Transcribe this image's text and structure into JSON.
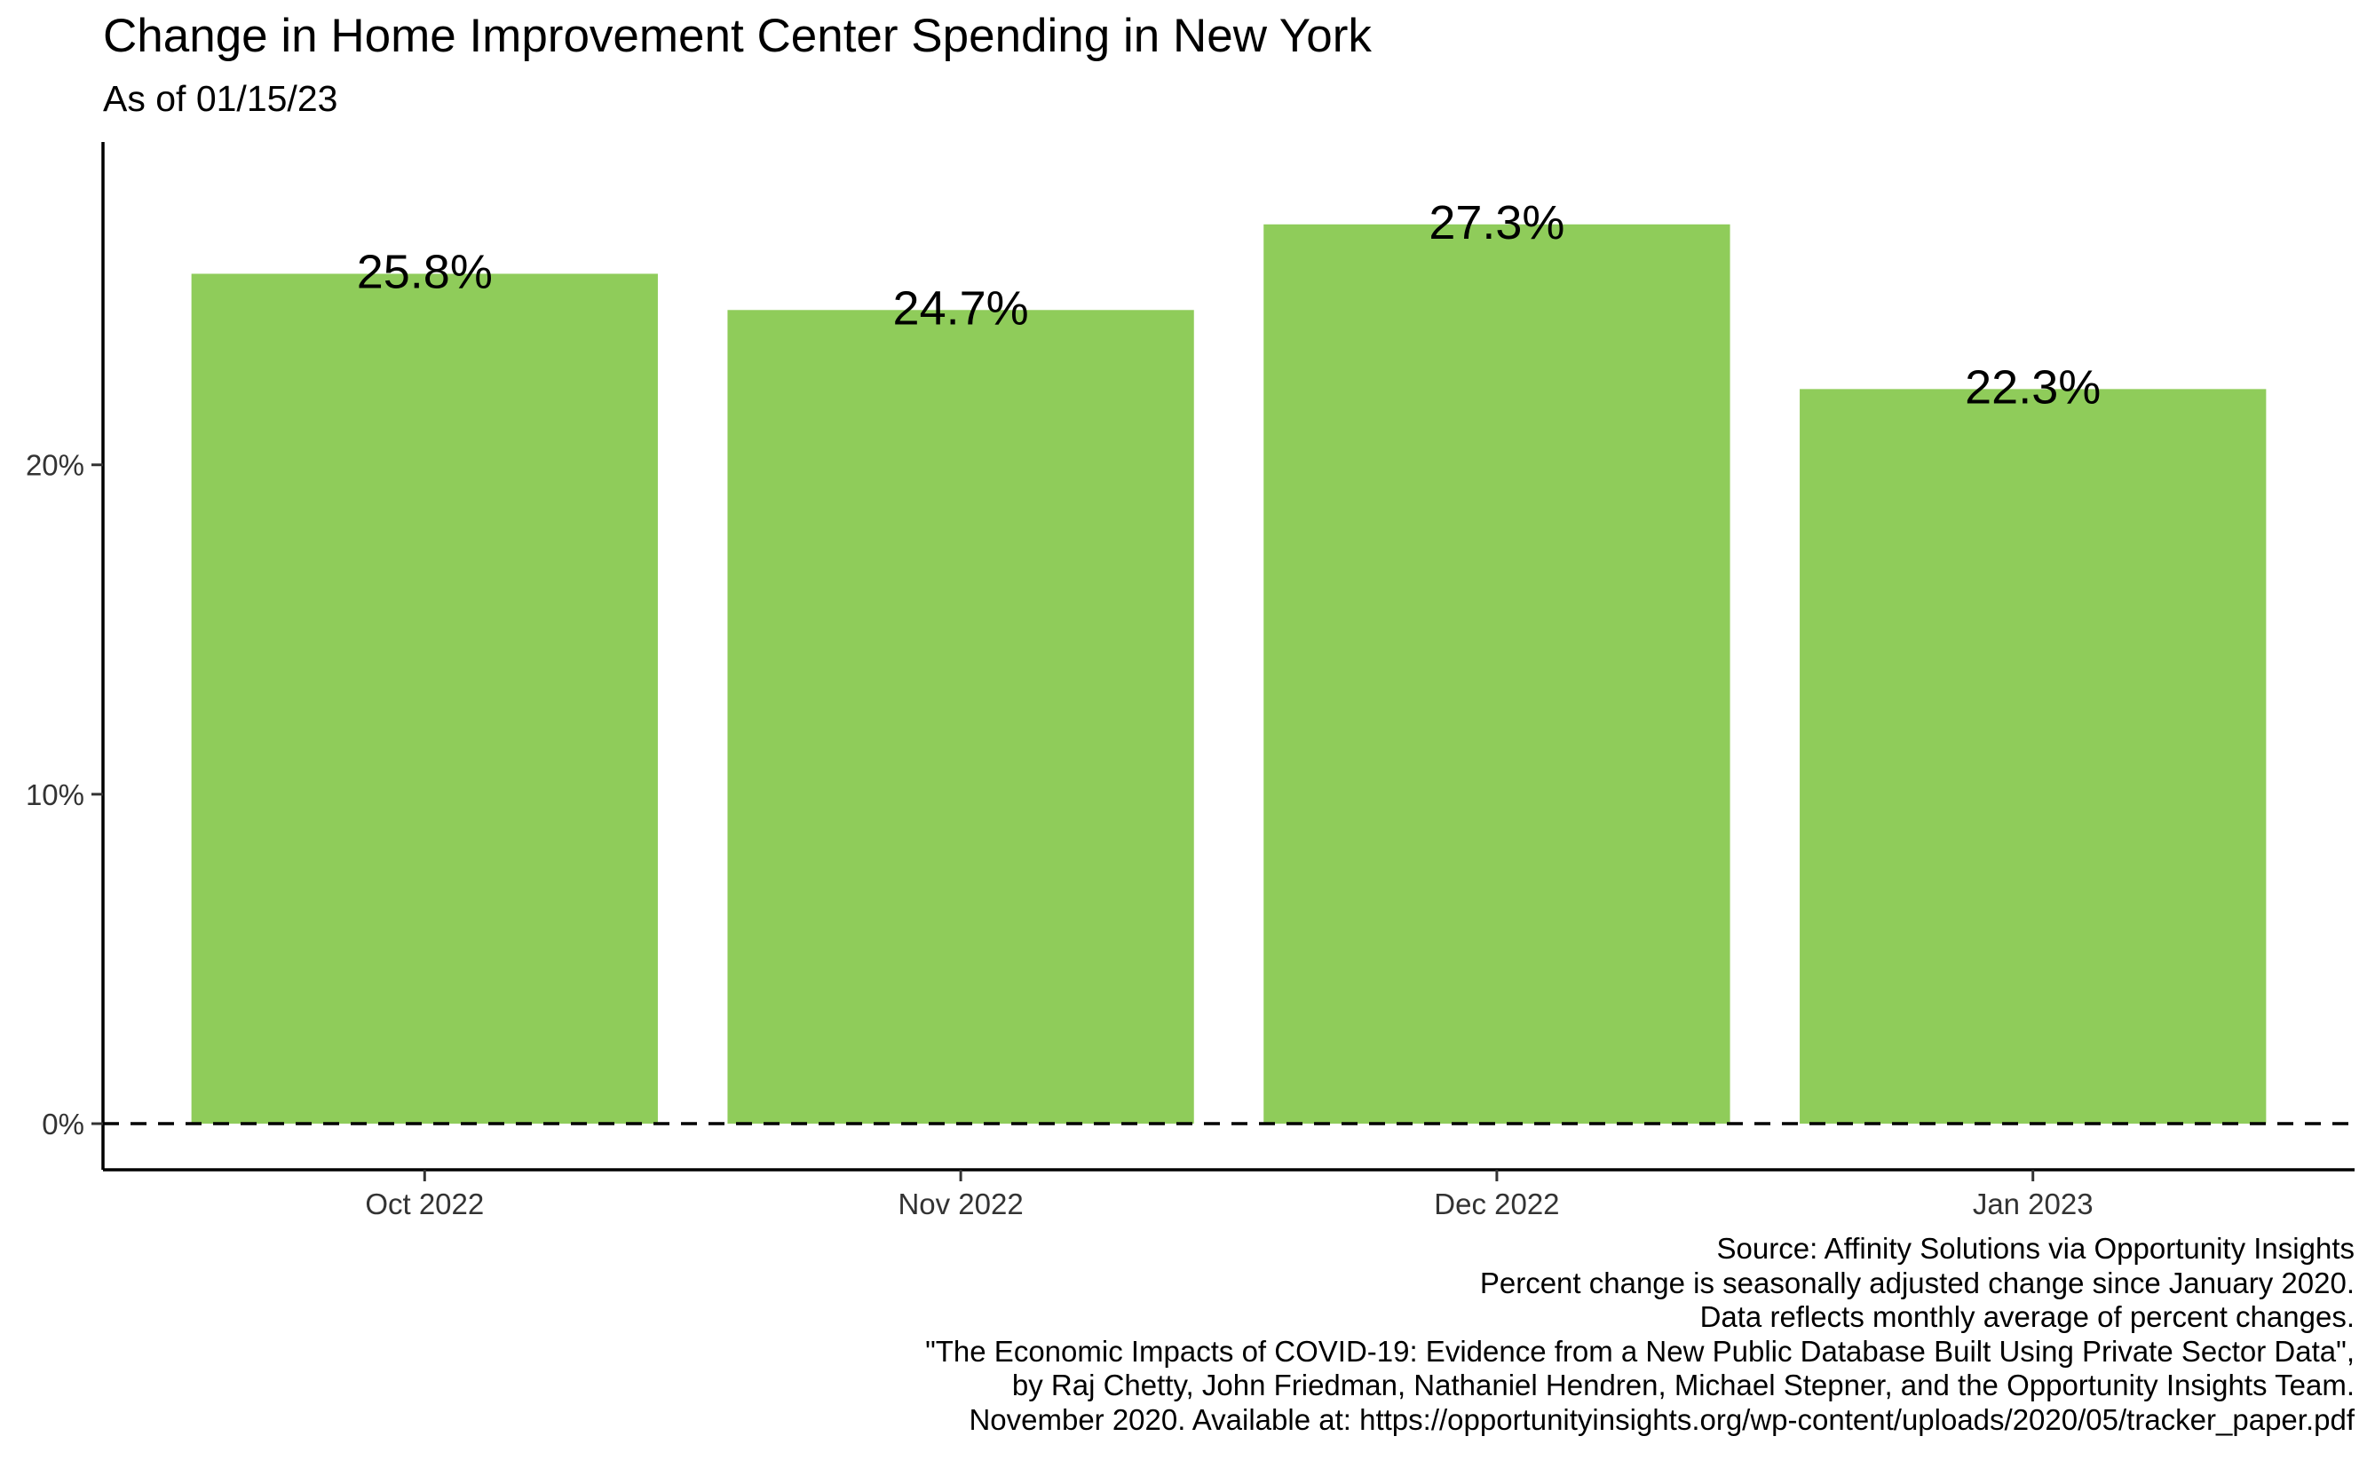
{
  "chart_data": {
    "type": "bar",
    "title": "Change in Home Improvement Center Spending in New York",
    "subtitle": "As of 01/15/23",
    "categories": [
      "Oct 2022",
      "Nov 2022",
      "Dec 2022",
      "Jan 2023"
    ],
    "values": [
      25.8,
      24.7,
      27.3,
      22.3
    ],
    "data_labels": [
      "25.8%",
      "24.7%",
      "27.3%",
      "22.3%"
    ],
    "xlabel": "",
    "ylabel": "",
    "ylim": [
      -1.4,
      29.8
    ],
    "yticks": [
      0,
      10,
      20
    ],
    "ytick_labels": [
      "0%",
      "10%",
      "20%"
    ],
    "reference_line": {
      "y": 0,
      "style": "dashed"
    },
    "grid": false,
    "legend": "none",
    "bar_color": "#8fcc5a",
    "caption": [
      "Source: Affinity Solutions via Opportunity Insights",
      "Percent change is seasonally adjusted change since January 2020.",
      "Data reflects monthly average of percent changes.",
      "\"The Economic Impacts of COVID-19: Evidence from a New Public Database Built Using Private Sector Data\",",
      "by Raj Chetty, John Friedman, Nathaniel Hendren, Michael Stepner, and the Opportunity Insights Team.",
      "November 2020. Available at: https://opportunityinsights.org/wp-content/uploads/2020/05/tracker_paper.pdf"
    ]
  }
}
